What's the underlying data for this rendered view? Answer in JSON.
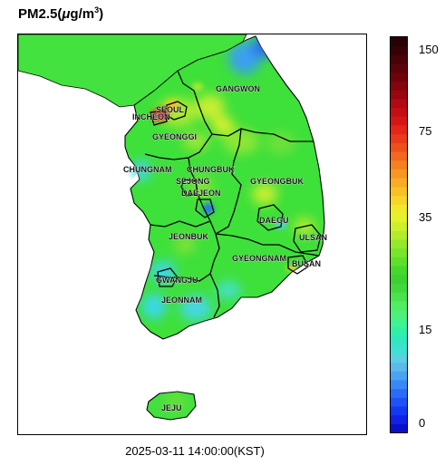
{
  "title": {
    "prefix": "PM2.5(",
    "mu": "μ",
    "unit": "g/m",
    "exp": "3",
    "suffix": ")"
  },
  "timestamp": "2025-03-11 14:00:00(KST)",
  "colorbar": {
    "min": 0,
    "max": 160,
    "ticks": [
      "150",
      "75",
      "35",
      "15",
      "0"
    ],
    "bands": [
      "#0a10c8",
      "#0f22e6",
      "#1538f2",
      "#1e52f6",
      "#2a6cf8",
      "#3a88f6",
      "#4aa2f2",
      "#5abaea",
      "#5ad0e4",
      "#3ee0d2",
      "#30e8c0",
      "#30f0a8",
      "#40f290",
      "#4cf07a",
      "#50ec62",
      "#4ae24e",
      "#42d83c",
      "#3cd232",
      "#46d82c",
      "#5ee02a",
      "#7ae42a",
      "#96e82a",
      "#b2ec2a",
      "#ccf02a",
      "#e4f22a",
      "#f2e82a",
      "#f6d428",
      "#f8c026",
      "#f8ac24",
      "#f89622",
      "#f68020",
      "#f2681e",
      "#ee501c",
      "#ea3a1a",
      "#e22618",
      "#d61616",
      "#c40e14",
      "#b00a12",
      "#9a0610",
      "#86040e",
      "#70020c",
      "#5c020a",
      "#4a0208",
      "#380106",
      "#280104"
    ]
  },
  "map": {
    "regions": [
      "SEOUL",
      "INCHEON",
      "GANGWON",
      "GYEONGGI",
      "CHUNGNAM",
      "CHUNGBUK",
      "SEJONG",
      "DAEJEON",
      "GYEONGBUK",
      "DAEGU",
      "ULSAN",
      "JEONBUK",
      "GYEONGNAM",
      "BUSAN",
      "GWANGJU",
      "JEONNAM",
      "JEJU"
    ],
    "colors": {
      "land": "#3ee03a",
      "sea": "#ffffff",
      "clean_air": "#3ad8e8",
      "hazy": "#b8ec34",
      "polluted": "#e8402a",
      "very_clean": "#2a6cf8",
      "border": "#000000"
    }
  }
}
